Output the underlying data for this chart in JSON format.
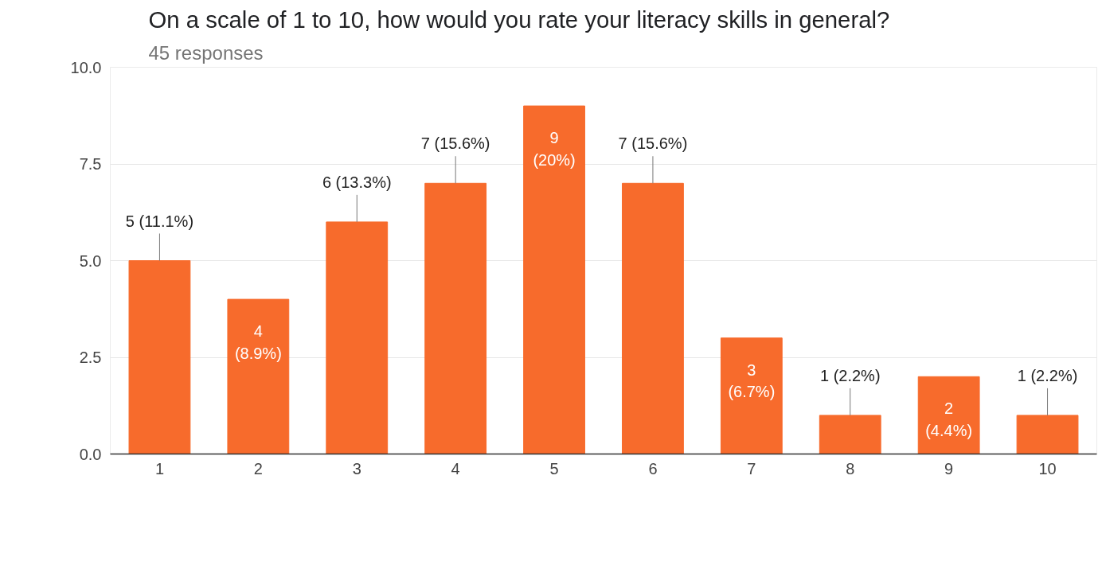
{
  "chart_data": {
    "type": "bar",
    "title": "On a scale of 1 to 10, how would you rate your literacy skills in general?",
    "subtitle": "45 responses",
    "categories": [
      "1",
      "2",
      "3",
      "4",
      "5",
      "6",
      "7",
      "8",
      "9",
      "10"
    ],
    "values": [
      5,
      4,
      6,
      7,
      9,
      7,
      3,
      1,
      2,
      1
    ],
    "value_labels": [
      "5 (11.1%)",
      "4 (8.9%)",
      "6 (13.3%)",
      "7 (15.6%)",
      "9 (20%)",
      "7 (15.6%)",
      "3 (6.7%)",
      "1 (2.2%)",
      "2 (4.4%)",
      "1 (2.2%)"
    ],
    "color": "#f76b2c",
    "ylim": [
      0,
      10
    ],
    "yticks": [
      {
        "value": 0,
        "label": "0.0"
      },
      {
        "value": 2.5,
        "label": "2.5"
      },
      {
        "value": 5,
        "label": "5.0"
      },
      {
        "value": 7.5,
        "label": "7.5"
      },
      {
        "value": 10,
        "label": "10.0"
      }
    ],
    "grid": "y"
  }
}
